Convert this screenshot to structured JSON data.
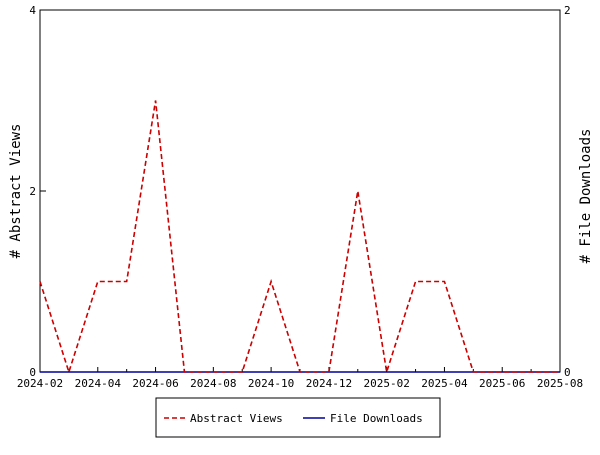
{
  "chart_data": {
    "type": "line",
    "title": "",
    "xlabel": "",
    "ylabel": "# Abstract Views",
    "ylabel_right": "# File Downloads",
    "x_ticks": [
      "2024-02",
      "2024-04",
      "2024-06",
      "2024-08",
      "2024-10",
      "2024-12",
      "2025-02",
      "2025-04",
      "2025-06",
      "2025-08"
    ],
    "x_range": [
      "2024-02",
      "2025-08"
    ],
    "ylim": [
      0,
      4
    ],
    "y_ticks": [
      "0",
      "2",
      "4"
    ],
    "ylim_right": [
      0,
      2
    ],
    "y_ticks_right": [
      "0",
      "2"
    ],
    "legend_position": "bottom",
    "grid": false,
    "series": [
      {
        "name": "Abstract Views",
        "axis": "left",
        "color": "#cc0000",
        "dash": "dashed",
        "x": [
          "2024-02",
          "2024-03",
          "2024-04",
          "2024-05",
          "2024-06",
          "2024-07",
          "2024-08",
          "2024-09",
          "2024-10",
          "2024-11",
          "2024-12",
          "2025-01",
          "2025-02",
          "2025-03",
          "2025-04",
          "2025-05",
          "2025-06",
          "2025-07",
          "2025-08"
        ],
        "values": [
          1,
          0,
          1,
          1,
          3,
          0,
          0,
          0,
          1,
          0,
          0,
          2,
          0,
          1,
          1,
          0,
          0,
          0,
          0
        ]
      },
      {
        "name": "File Downloads",
        "axis": "right",
        "color": "#000099",
        "dash": "solid",
        "x": [
          "2024-02",
          "2024-03",
          "2024-04",
          "2024-05",
          "2024-06",
          "2024-07",
          "2024-08",
          "2024-09",
          "2024-10",
          "2024-11",
          "2024-12",
          "2025-01",
          "2025-02",
          "2025-03",
          "2025-04",
          "2025-05",
          "2025-06",
          "2025-07",
          "2025-08"
        ],
        "values": [
          0,
          0,
          0,
          0,
          0,
          0,
          0,
          0,
          0,
          0,
          0,
          0,
          0,
          0,
          0,
          0,
          0,
          0,
          0
        ]
      }
    ]
  }
}
